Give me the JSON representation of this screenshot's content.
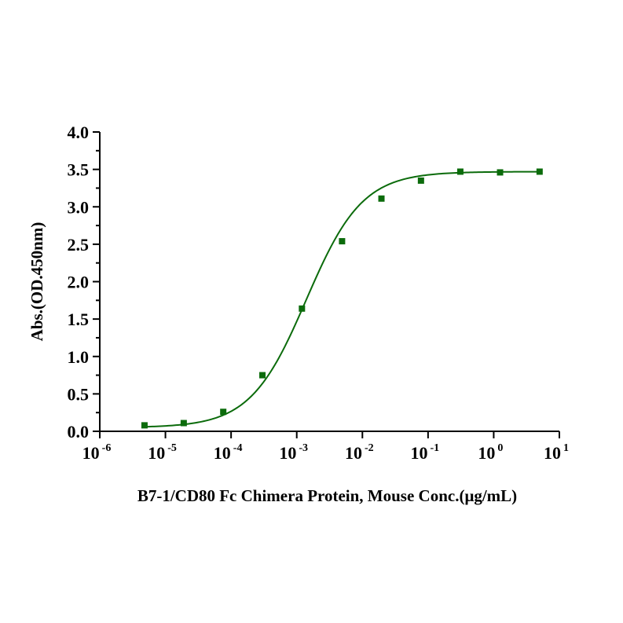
{
  "chart_data": {
    "type": "scatter",
    "title": "",
    "xlabel": "B7-1/CD80 Fc Chimera Protein, Mouse Conc.(μg/mL)",
    "ylabel": "Abs.(OD.450nm)",
    "x_scale": "log10",
    "xlim": [
      1e-06,
      10
    ],
    "ylim": [
      0,
      4
    ],
    "x_tick_labels": [
      {
        "base": "10",
        "exp": "-6"
      },
      {
        "base": "10",
        "exp": "-5"
      },
      {
        "base": "10",
        "exp": "-4"
      },
      {
        "base": "10",
        "exp": "-3"
      },
      {
        "base": "10",
        "exp": "-2"
      },
      {
        "base": "10",
        "exp": "-1"
      },
      {
        "base": "10",
        "exp": "0"
      },
      {
        "base": "10",
        "exp": "1"
      }
    ],
    "y_tick_labels": [
      "0.0",
      "0.5",
      "1.0",
      "1.5",
      "2.0",
      "2.5",
      "3.0",
      "3.5",
      "4.0"
    ],
    "grid": false,
    "colors": {
      "series": "#0b6b0b"
    },
    "series": [
      {
        "marker": "square",
        "fit": "sigmoidal",
        "x": [
          4.8e-06,
          1.9e-05,
          7.6e-05,
          0.0003,
          0.0012,
          0.0049,
          0.0195,
          0.078,
          0.31,
          1.25,
          5
        ],
        "y": [
          0.08,
          0.11,
          0.26,
          0.75,
          1.64,
          2.54,
          3.11,
          3.35,
          3.47,
          3.46,
          3.47
        ]
      }
    ]
  }
}
